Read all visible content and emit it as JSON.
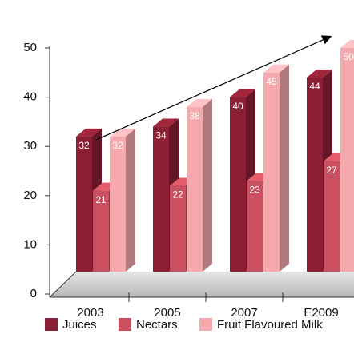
{
  "chart_data": {
    "type": "bar3d",
    "categories": [
      "2003",
      "2005",
      "2007",
      "E2009"
    ],
    "series": [
      {
        "name": "Juices",
        "color": "#8b2035",
        "values": [
          32,
          34,
          40,
          44
        ]
      },
      {
        "name": "Nectars",
        "color": "#c9505f",
        "values": [
          21,
          22,
          23,
          27
        ]
      },
      {
        "name": "Fruit Flavoured Milk",
        "color": "#f4a9ad",
        "values": [
          32,
          38,
          45,
          50
        ]
      }
    ],
    "ylim": [
      0,
      50
    ],
    "yticks": [
      0,
      10,
      20,
      30,
      40,
      50
    ],
    "legend": "bottom"
  }
}
